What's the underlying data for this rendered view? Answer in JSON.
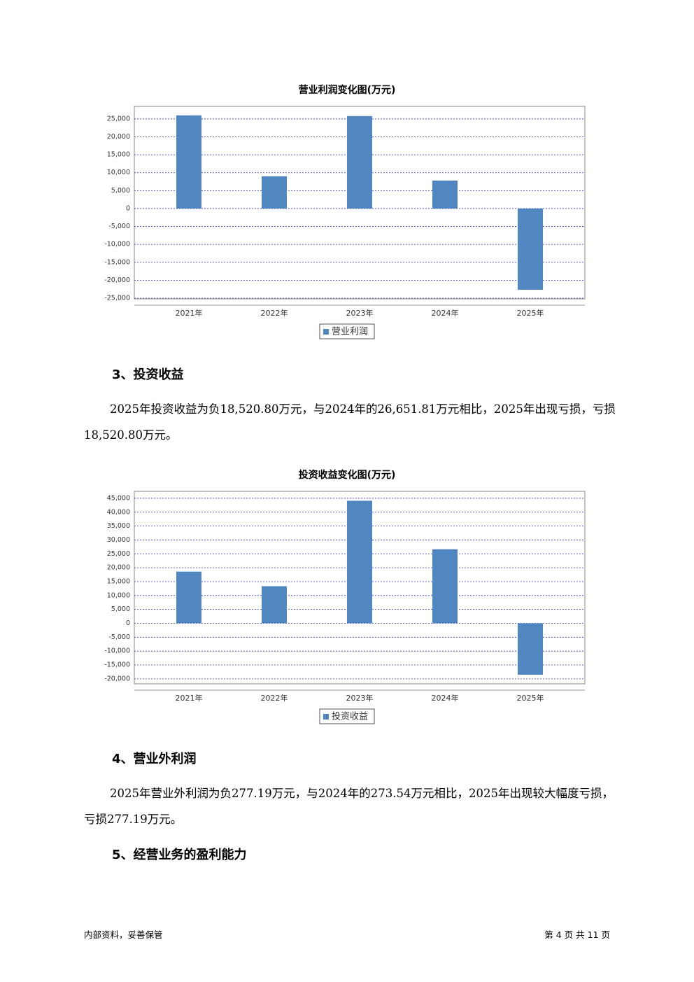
{
  "chart_data": [
    {
      "type": "bar",
      "title": "营业利润变化图(万元)",
      "categories": [
        "2021年",
        "2022年",
        "2023年",
        "2024年",
        "2025年"
      ],
      "series": [
        {
          "name": "营业利润",
          "color": "#5087c0",
          "values": [
            26000,
            9000,
            25800,
            7800,
            -22650
          ]
        }
      ],
      "ylim": [
        -25200,
        28500
      ],
      "yticks": [
        {
          "value": 25000,
          "label": "25,000"
        },
        {
          "value": 20000,
          "label": "20,000"
        },
        {
          "value": 15000,
          "label": "15,000"
        },
        {
          "value": 10000,
          "label": "10,000"
        },
        {
          "value": 5000,
          "label": "5,000"
        },
        0,
        {
          "value": -5000,
          "label": "-5,000"
        },
        {
          "value": -10000,
          "label": "-10,000"
        },
        {
          "value": -15000,
          "label": "-15,000"
        },
        {
          "value": -20000,
          "label": "-20,000"
        },
        {
          "value": -25000,
          "label": "-25,000"
        }
      ],
      "grid": true
    },
    {
      "type": "bar",
      "title": "投资收益变化图(万元)",
      "categories": [
        "2021年",
        "2022年",
        "2023年",
        "2024年",
        "2025年"
      ],
      "series": [
        {
          "name": "投资收益",
          "color": "#5087c0",
          "values": [
            18600,
            13350,
            44100,
            26651.81,
            -18520.8
          ]
        }
      ],
      "ylim": [
        -21800,
        47500
      ],
      "yticks": [
        {
          "value": 45000,
          "label": "45,000"
        },
        {
          "value": 40000,
          "label": "40,000"
        },
        {
          "value": 35000,
          "label": "35,000"
        },
        {
          "value": 30000,
          "label": "30,000"
        },
        {
          "value": 25000,
          "label": "25,000"
        },
        {
          "value": 20000,
          "label": "20,000"
        },
        {
          "value": 15000,
          "label": "15,000"
        },
        {
          "value": 10000,
          "label": "10,000"
        },
        {
          "value": 5000,
          "label": "5,000"
        },
        0,
        {
          "value": -5000,
          "label": "-5,000"
        },
        {
          "value": -10000,
          "label": "-10,000"
        },
        {
          "value": -15000,
          "label": "-15,000"
        },
        {
          "value": -20000,
          "label": "-20,000"
        }
      ],
      "grid": true
    }
  ],
  "sections": [
    {
      "heading": "3、投资收益",
      "paragraph": "2025年投资收益为负18,520.80万元，与2024年的26,651.81万元相比，2025年出现亏损，亏损18,520.80万元。"
    },
    {
      "heading": "4、营业外利润",
      "paragraph": "2025年营业外利润为负277.19万元，与2024年的273.54万元相比，2025年出现较大幅度亏损，亏损277.19万元。"
    },
    {
      "heading": "5、经营业务的盈利能力"
    }
  ],
  "footer": {
    "left": "内部资料，妥善保管",
    "right": "第 4 页 共 11 页"
  }
}
